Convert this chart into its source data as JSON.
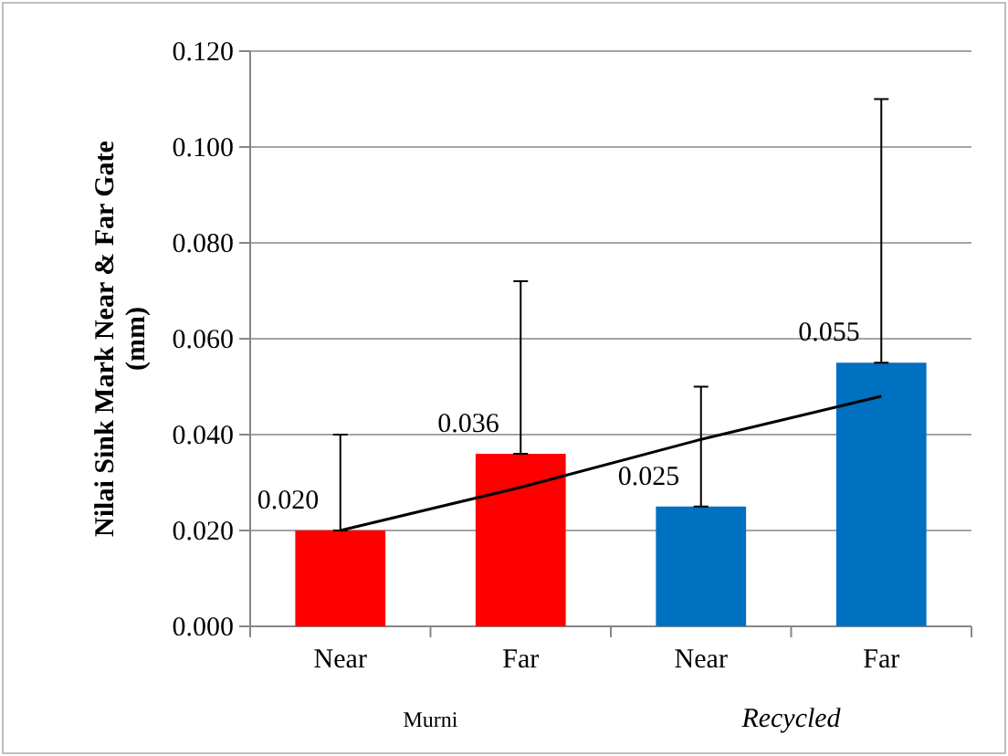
{
  "chart_data": {
    "type": "bar",
    "ylabel": "Nilai Sink Mark Near & Far Gate (mm)",
    "categories": [
      "Near",
      "Far",
      "Near",
      "Far"
    ],
    "series": [
      {
        "colors": [
          "#ff0000",
          "#ff0000",
          "#0070c0",
          "#0070c0"
        ],
        "values": [
          0.02,
          0.036,
          0.025,
          0.055
        ],
        "errors": [
          [
            0.02,
            0.04
          ],
          [
            0.036,
            0.072
          ],
          [
            0.025,
            0.05
          ],
          [
            0.055,
            0.11
          ]
        ],
        "value_labels": [
          "0.020",
          "0.036",
          "0.025",
          "0.055"
        ]
      },
      {
        "type": "line",
        "color": "#000000",
        "values": [
          0.02,
          0.029,
          0.039,
          0.048
        ]
      }
    ],
    "ylim": [
      0,
      0.12
    ],
    "yticks": [
      {
        "value": 0,
        "label": "0.000"
      },
      {
        "value": 0.02,
        "label": "0.020"
      },
      {
        "value": 0.04,
        "label": "0.040"
      },
      {
        "value": 0.06,
        "label": "0.060"
      },
      {
        "value": 0.08,
        "label": "0.080"
      },
      {
        "value": 0.1,
        "label": "0.100"
      },
      {
        "value": 0.12,
        "label": "0.120"
      }
    ],
    "grid": "y",
    "annotations": [
      "Murni",
      "Recycled"
    ]
  }
}
